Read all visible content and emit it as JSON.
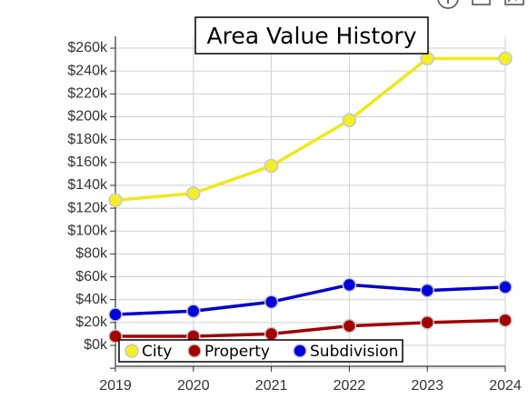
{
  "toolbar": {
    "icons": [
      "info-icon",
      "window-icon",
      "chart-icon"
    ]
  },
  "chart_data": {
    "type": "line",
    "title": "Area Value History",
    "xlabel": "",
    "ylabel": "",
    "x": [
      "2019",
      "2020",
      "2021",
      "2022",
      "2023",
      "2024"
    ],
    "y_ticks": [
      0,
      20000,
      40000,
      60000,
      80000,
      100000,
      120000,
      140000,
      160000,
      180000,
      200000,
      220000,
      240000,
      260000
    ],
    "y_tick_labels": [
      "$0k",
      "$20k",
      "$40k",
      "$60k",
      "$80k",
      "$100k",
      "$120k",
      "$140k",
      "$160k",
      "$180k",
      "$200k",
      "$220k",
      "$240k",
      "$260k"
    ],
    "ylim": [
      -20000,
      270000
    ],
    "grid": true,
    "legend_position": "bottom-left",
    "series": [
      {
        "name": "City",
        "line_color": "#f0e81a",
        "marker_color": "#f4ee2a",
        "values": [
          127000,
          133000,
          157000,
          197000,
          251000,
          251000
        ]
      },
      {
        "name": "Property",
        "line_color": "#a00000",
        "marker_color": "#a50000",
        "values": [
          8000,
          8000,
          10000,
          17000,
          20000,
          22000
        ]
      },
      {
        "name": "Subdivision",
        "line_color": "#0000c8",
        "marker_color": "#0000d8",
        "values": [
          27000,
          30000,
          38000,
          53000,
          48000,
          51000
        ]
      }
    ]
  }
}
